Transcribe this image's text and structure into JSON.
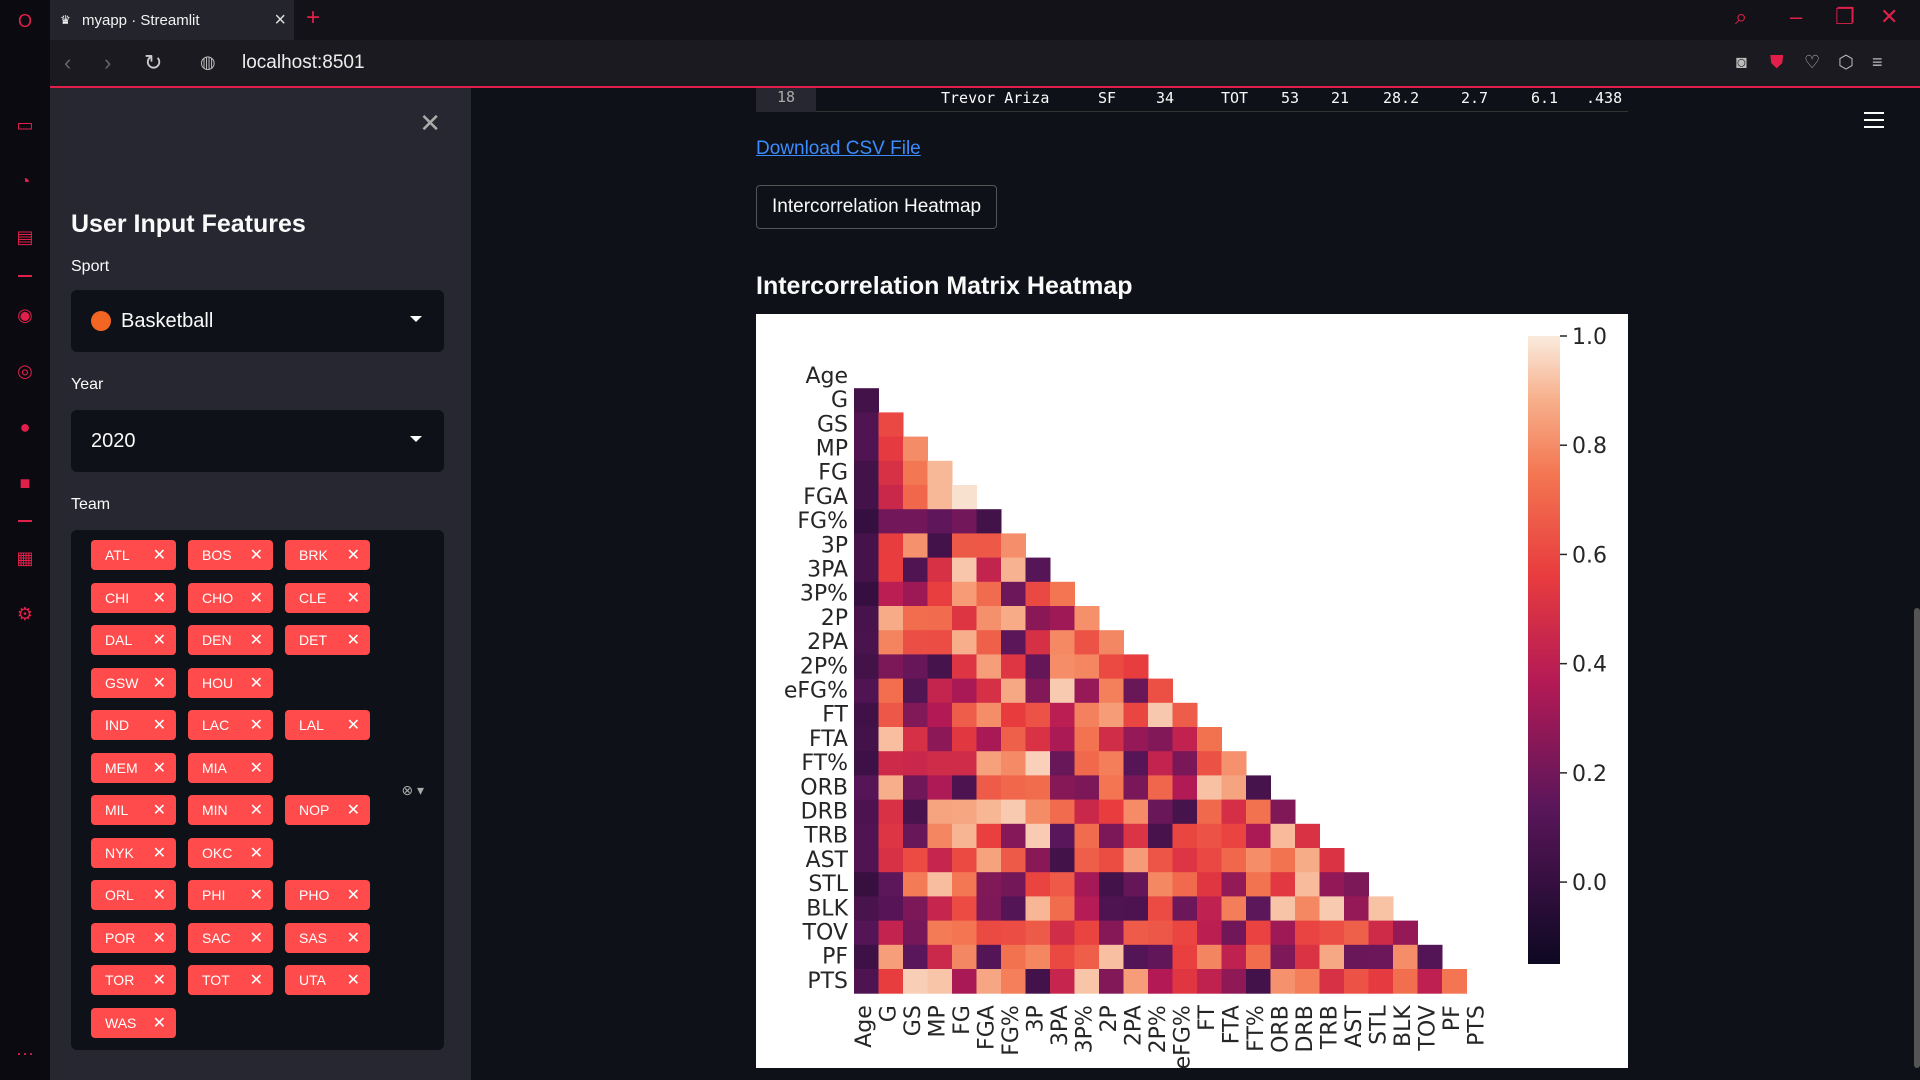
{
  "browser": {
    "tab_title": "myapp · Streamlit",
    "url": "localhost:8501"
  },
  "sidebar": {
    "title": "User Input Features",
    "sport_label": "Sport",
    "sport_value": "Basketball",
    "year_label": "Year",
    "year_value": "2020",
    "team_label": "Team",
    "teams": [
      "ATL",
      "BOS",
      "BRK",
      "CHI",
      "CHO",
      "CLE",
      "DAL",
      "DEN",
      "DET",
      "GSW",
      "HOU",
      "IND",
      "LAC",
      "LAL",
      "MEM",
      "MIA",
      "MIL",
      "MIN",
      "NOP",
      "NYK",
      "OKC",
      "ORL",
      "PHI",
      "PHO",
      "POR",
      "SAC",
      "SAS",
      "TOR",
      "TOT",
      "UTA",
      "WAS"
    ]
  },
  "main": {
    "row": {
      "idx": "18",
      "player": "Trevor Ariza",
      "pos": "SF",
      "age": "34",
      "tm": "TOT",
      "g": "53",
      "gs": "21",
      "mp": "28.2",
      "fg": "2.7",
      "fga": "6.1",
      "fgp": ".438"
    },
    "download_link": "Download CSV File",
    "button_label": "Intercorrelation Heatmap",
    "heading": "Intercorrelation Matrix Heatmap"
  },
  "chart_data": {
    "type": "heatmap",
    "labels": [
      "Age",
      "G",
      "GS",
      "MP",
      "FG",
      "FGA",
      "FG%",
      "3P",
      "3PA",
      "3P%",
      "2P",
      "2PA",
      "2P%",
      "eFG%",
      "FT",
      "FTA",
      "FT%",
      "ORB",
      "DRB",
      "TRB",
      "AST",
      "STL",
      "BLK",
      "TOV",
      "PF",
      "PTS"
    ],
    "mask": "upper-triangle",
    "colorbar_ticks": [
      "1.0",
      "0.8",
      "0.6",
      "0.4",
      "0.2",
      "0.0"
    ],
    "colorbar_range": [
      -0.15,
      1.0
    ],
    "values_approx": {
      "G": {
        "Age": 0.05
      },
      "GS": {
        "Age": 0.1,
        "G": 0.6
      },
      "MP": {
        "Age": 0.1,
        "G": 0.55,
        "GS": 0.8
      },
      "FG": {
        "Age": 0.05,
        "G": 0.5,
        "GS": 0.75,
        "MP": 0.9
      },
      "FGA": {
        "Age": 0.05,
        "G": 0.45,
        "GS": 0.7,
        "MP": 0.9,
        "FG": 0.98
      },
      "FG%": {
        "Age": 0.0,
        "G": 0.2,
        "GS": 0.2,
        "MP": 0.15,
        "FG": 0.2,
        "FGA": 0.05
      }
    }
  }
}
